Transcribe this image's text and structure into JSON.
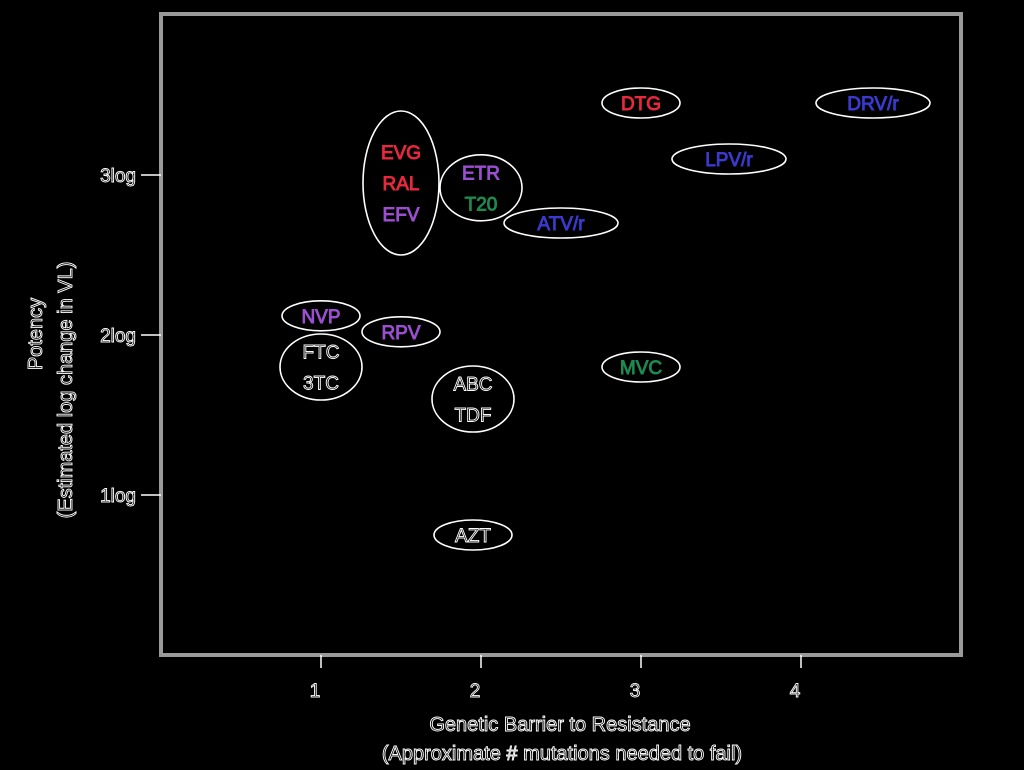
{
  "chart_data": {
    "type": "scatter",
    "xlabel": "Genetic Barrier to Resistance",
    "xlabel_sub": "(Approximate # mutations needed to fail)",
    "ylabel": "Potency",
    "ylabel_sub": "(Estimated log change in VL)",
    "x_ticks": [
      "1",
      "2",
      "3",
      "4"
    ],
    "y_ticks": [
      "1log",
      "2log",
      "3log"
    ],
    "xlim": [
      0,
      5
    ],
    "ylim": [
      0,
      4
    ],
    "grid": false,
    "legend": "none",
    "colors": {
      "red": "#e8283c",
      "purple": "#9b4fd0",
      "green": "#1e8a50",
      "blue": "#3a3ad0",
      "black": "#000000",
      "outline": "#ffffff",
      "frame": "#9a9a9a"
    },
    "groups": [
      {
        "labels": [
          "EVG",
          "RAL",
          "EFV"
        ],
        "colors": [
          "red",
          "red",
          "purple"
        ],
        "x": 1.5,
        "y": 2.95
      },
      {
        "labels": [
          "ETR",
          "T20"
        ],
        "colors": [
          "purple",
          "green"
        ],
        "x": 2.0,
        "y": 2.92
      },
      {
        "labels": [
          "DTG"
        ],
        "colors": [
          "red"
        ],
        "x": 3.0,
        "y": 3.45
      },
      {
        "labels": [
          "DRV/r"
        ],
        "colors": [
          "blue"
        ],
        "x": 4.45,
        "y": 3.45
      },
      {
        "labels": [
          "LPV/r"
        ],
        "colors": [
          "blue"
        ],
        "x": 3.55,
        "y": 3.1
      },
      {
        "labels": [
          "ATV/r"
        ],
        "colors": [
          "blue"
        ],
        "x": 2.5,
        "y": 2.7
      },
      {
        "labels": [
          "NVP"
        ],
        "colors": [
          "purple"
        ],
        "x": 1.0,
        "y": 2.12
      },
      {
        "labels": [
          "RPV"
        ],
        "colors": [
          "purple"
        ],
        "x": 1.5,
        "y": 2.02
      },
      {
        "labels": [
          "FTC",
          "3TC"
        ],
        "colors": [
          "black",
          "black"
        ],
        "x": 1.0,
        "y": 1.8
      },
      {
        "labels": [
          "MVC"
        ],
        "colors": [
          "green"
        ],
        "x": 3.0,
        "y": 1.8
      },
      {
        "labels": [
          "ABC",
          "TDF"
        ],
        "colors": [
          "black",
          "black"
        ],
        "x": 1.95,
        "y": 1.6
      },
      {
        "labels": [
          "AZT"
        ],
        "colors": [
          "black"
        ],
        "x": 1.95,
        "y": 0.75
      }
    ]
  }
}
